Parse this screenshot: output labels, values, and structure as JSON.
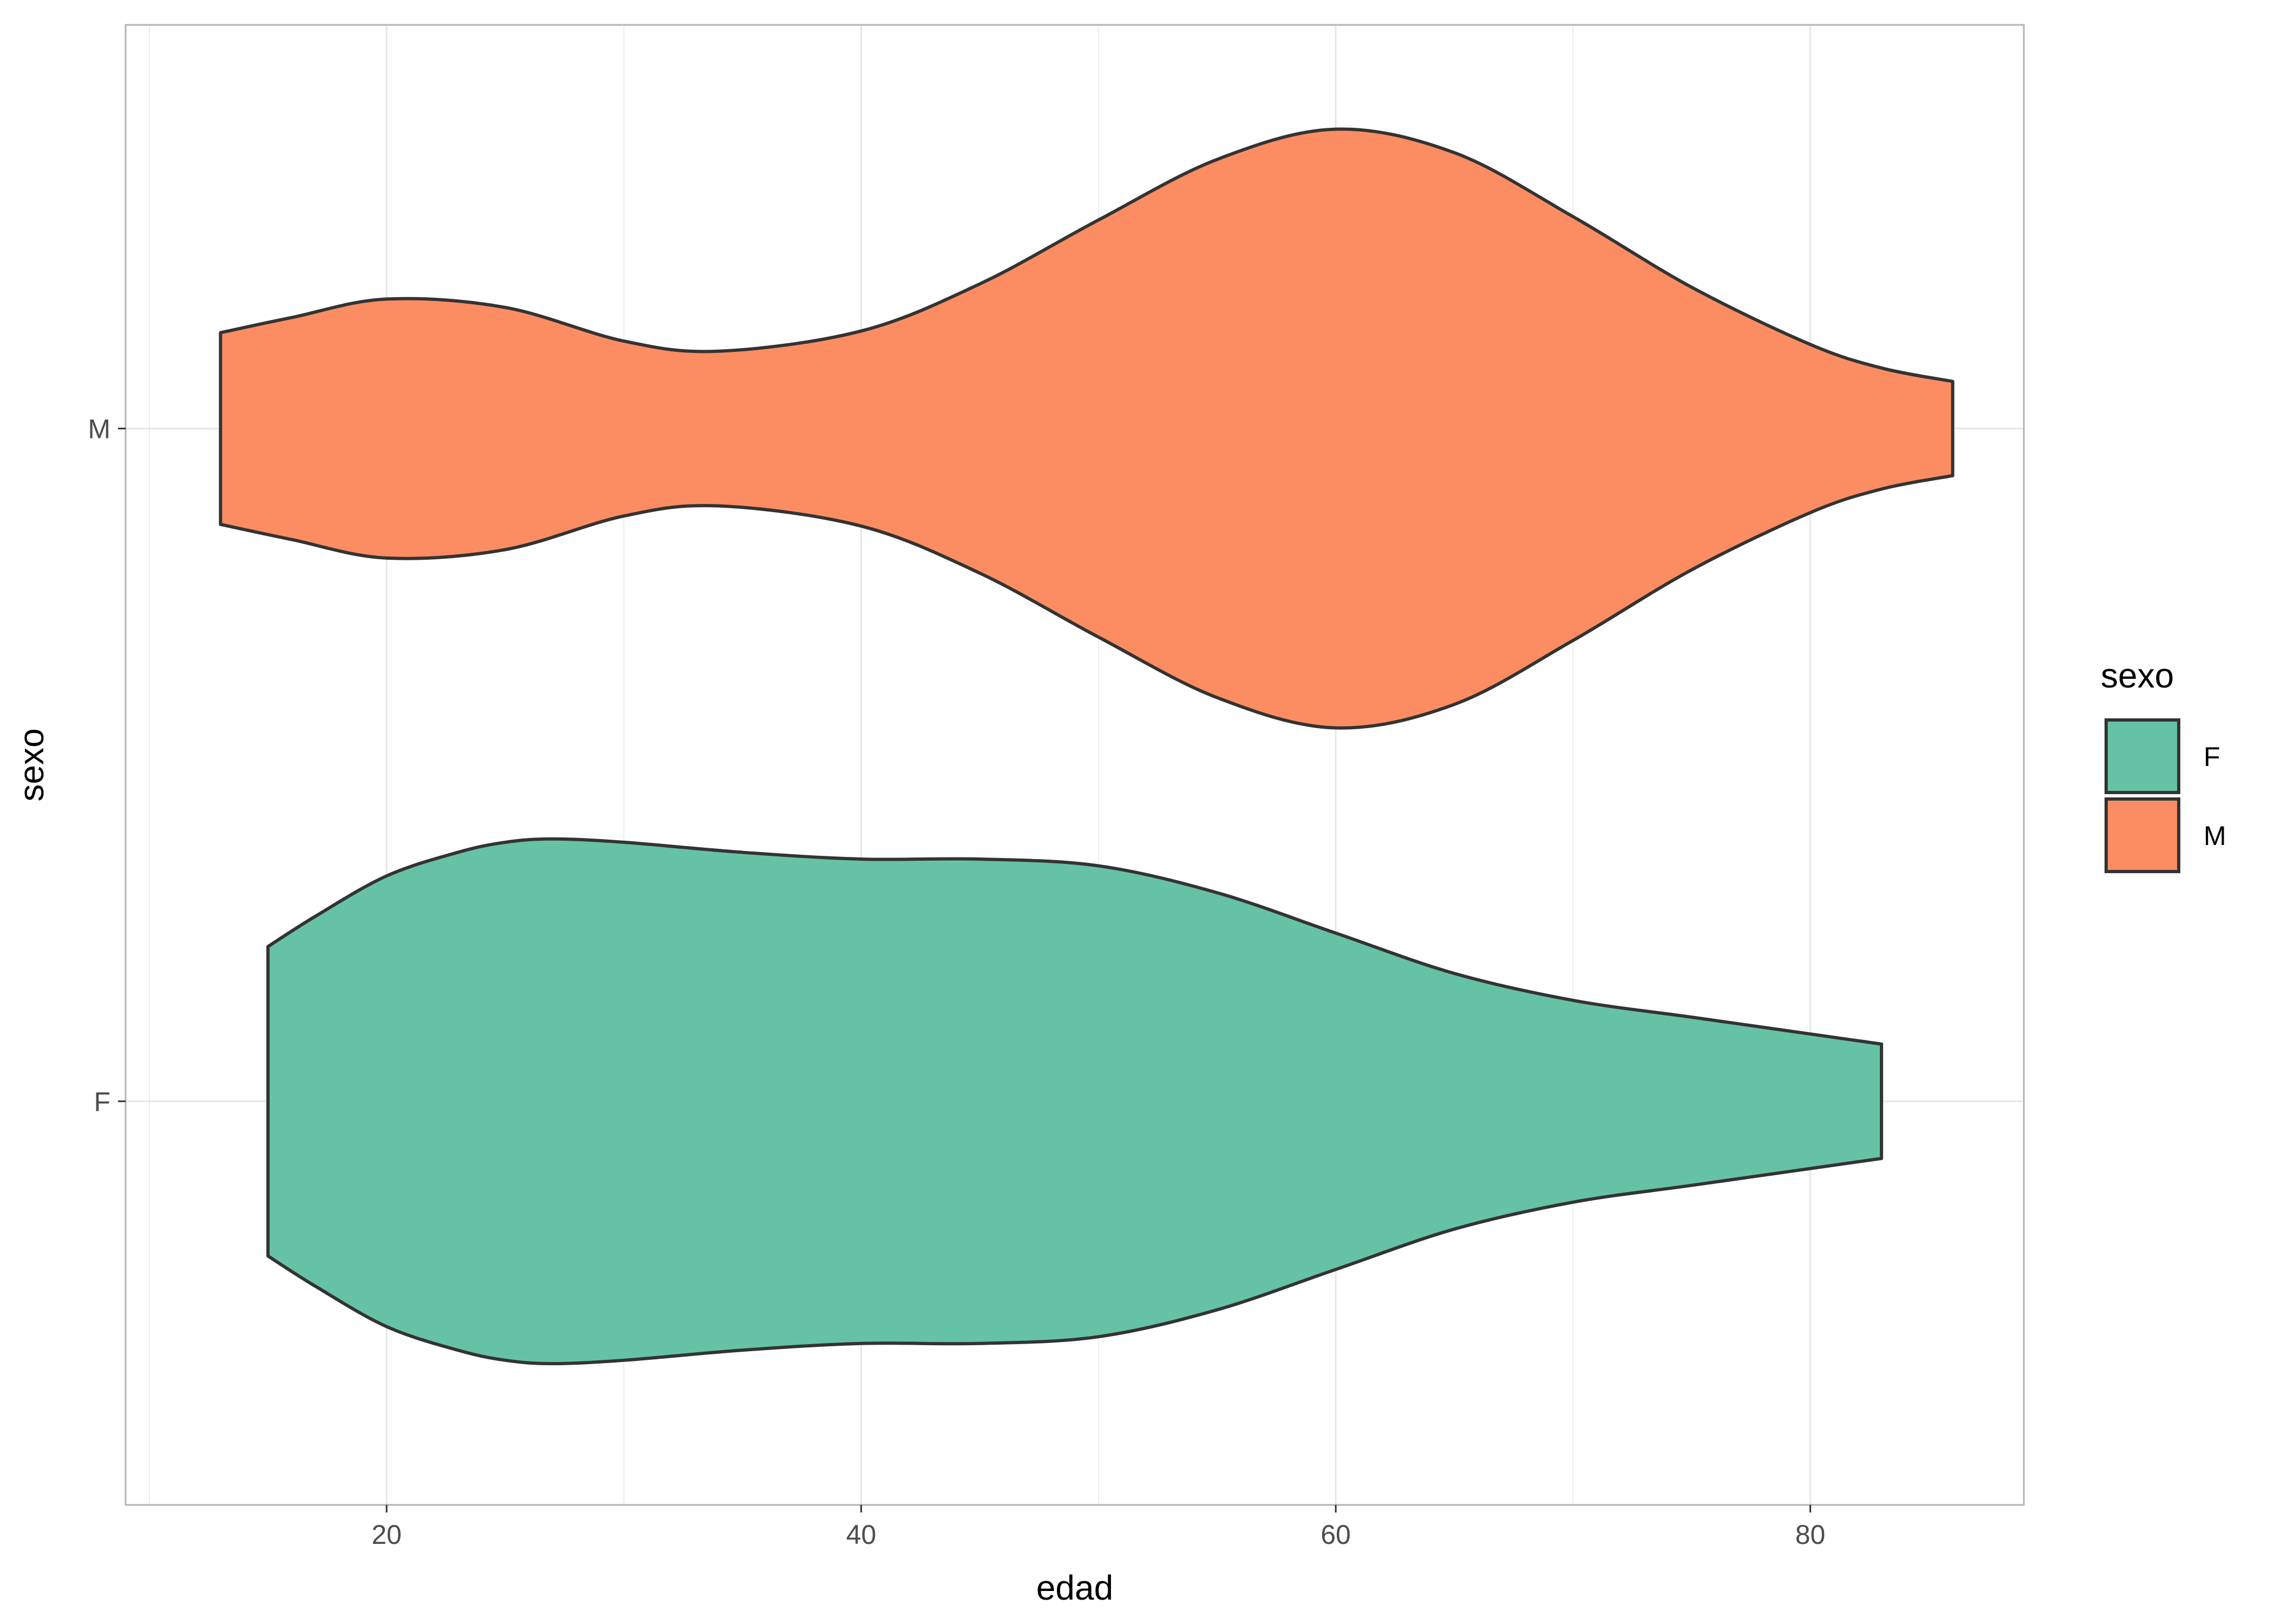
{
  "chart_data": {
    "type": "violin",
    "orientation": "horizontal",
    "xlabel": "edad",
    "ylabel": "sexo",
    "xlim": [
      9,
      89
    ],
    "x_ticks": [
      20,
      40,
      60,
      80
    ],
    "x_tick_labels": [
      "20",
      "40",
      "60",
      "80"
    ],
    "categories": [
      "F",
      "M"
    ],
    "grid": true,
    "legend": {
      "title": "sexo",
      "position": "right",
      "entries": [
        {
          "label": "F",
          "color": "#66c2a5"
        },
        {
          "label": "M",
          "color": "#fc8d62"
        }
      ]
    },
    "series": [
      {
        "name": "F",
        "color": "#66c2a5",
        "range": [
          15,
          83
        ],
        "density_width": [
          [
            15,
            0.46
          ],
          [
            17,
            0.55
          ],
          [
            20,
            0.67
          ],
          [
            23,
            0.74
          ],
          [
            25,
            0.77
          ],
          [
            27,
            0.78
          ],
          [
            30,
            0.77
          ],
          [
            35,
            0.74
          ],
          [
            40,
            0.72
          ],
          [
            45,
            0.72
          ],
          [
            50,
            0.7
          ],
          [
            55,
            0.62
          ],
          [
            60,
            0.5
          ],
          [
            65,
            0.38
          ],
          [
            70,
            0.3
          ],
          [
            75,
            0.25
          ],
          [
            80,
            0.2
          ],
          [
            83,
            0.17
          ]
        ]
      },
      {
        "name": "M",
        "color": "#fc8d62",
        "range": [
          13,
          86
        ],
        "density_width": [
          [
            13,
            0.285
          ],
          [
            16,
            0.33
          ],
          [
            20,
            0.385
          ],
          [
            25,
            0.36
          ],
          [
            30,
            0.26
          ],
          [
            34,
            0.23
          ],
          [
            40,
            0.29
          ],
          [
            45,
            0.43
          ],
          [
            50,
            0.62
          ],
          [
            55,
            0.8
          ],
          [
            60,
            0.89
          ],
          [
            65,
            0.82
          ],
          [
            70,
            0.63
          ],
          [
            75,
            0.42
          ],
          [
            80,
            0.25
          ],
          [
            83,
            0.18
          ],
          [
            86,
            0.14
          ]
        ]
      }
    ],
    "outline_color": "#333333",
    "panel_border_color": "#b3b3b3",
    "grid_color": "#e6e6e6"
  }
}
